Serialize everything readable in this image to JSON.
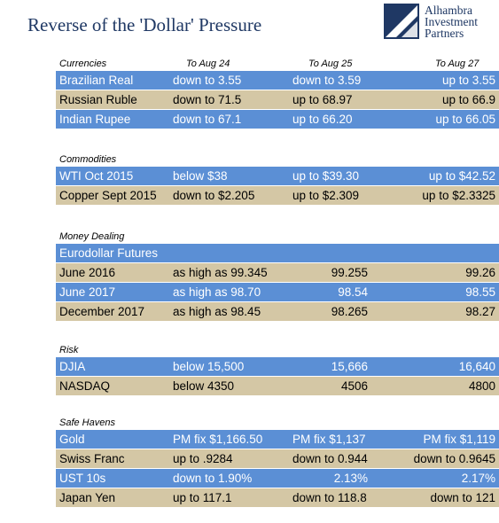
{
  "title": "Reverse of the 'Dollar' Pressure",
  "logo": {
    "line1": "Alhambra",
    "line2": "Investment",
    "line3": "Partners"
  },
  "sections": {
    "currencies": {
      "label": "Currencies",
      "headers": [
        "To Aug 24",
        "To Aug 25",
        "To Aug 27"
      ],
      "rows": [
        {
          "name": "Brazilian Real",
          "v": [
            "down to 3.55",
            "down to 3.59",
            "up to 3.55"
          ]
        },
        {
          "name": "Russian Ruble",
          "v": [
            "down to 71.5",
            "up to 68.97",
            "up to 66.9"
          ]
        },
        {
          "name": "Indian Rupee",
          "v": [
            "down to 67.1",
            "up to 66.20",
            "up to 66.05"
          ]
        }
      ]
    },
    "commodities": {
      "label": "Commodities",
      "rows": [
        {
          "name": "WTI Oct 2015",
          "v": [
            "below $38",
            "up to $39.30",
            "up to $42.52"
          ]
        },
        {
          "name": "Copper Sept 2015",
          "v": [
            "down to $2.205",
            "up to $2.309",
            "up to $2.3325"
          ]
        }
      ]
    },
    "money": {
      "label": "Money Dealing",
      "subheader": "Eurodollar Futures",
      "rows": [
        {
          "name": "June 2016",
          "v": [
            "as high as 99.345",
            "99.255",
            "99.26"
          ]
        },
        {
          "name": "June 2017",
          "v": [
            "as high as 98.70",
            "98.54",
            "98.55"
          ]
        },
        {
          "name": "December 2017",
          "v": [
            "as high as 98.45",
            "98.265",
            "98.27"
          ]
        }
      ]
    },
    "risk": {
      "label": "Risk",
      "rows": [
        {
          "name": "DJIA",
          "v": [
            "below 15,500",
            "15,666",
            "16,640"
          ]
        },
        {
          "name": "NASDAQ",
          "v": [
            "below 4350",
            "4506",
            "4800"
          ]
        }
      ]
    },
    "safe": {
      "label": "Safe Havens",
      "rows": [
        {
          "name": "Gold",
          "v": [
            "PM fix $1,166.50",
            "PM fix $1,137",
            "PM fix $1,119"
          ]
        },
        {
          "name": "Swiss Franc",
          "v": [
            "up to .9284",
            "down to 0.944",
            "down to 0.9645"
          ]
        },
        {
          "name": "UST 10s",
          "v": [
            "down to 1.90%",
            "2.13%",
            "2.17%"
          ]
        },
        {
          "name": "Japan Yen",
          "v": [
            "up to 117.1",
            "down to 118.8",
            "down to 121"
          ]
        }
      ]
    }
  },
  "colors": {
    "title": "#1f3864",
    "blue_row": "#5b8fd5",
    "tan_row": "#d4c7a5"
  }
}
